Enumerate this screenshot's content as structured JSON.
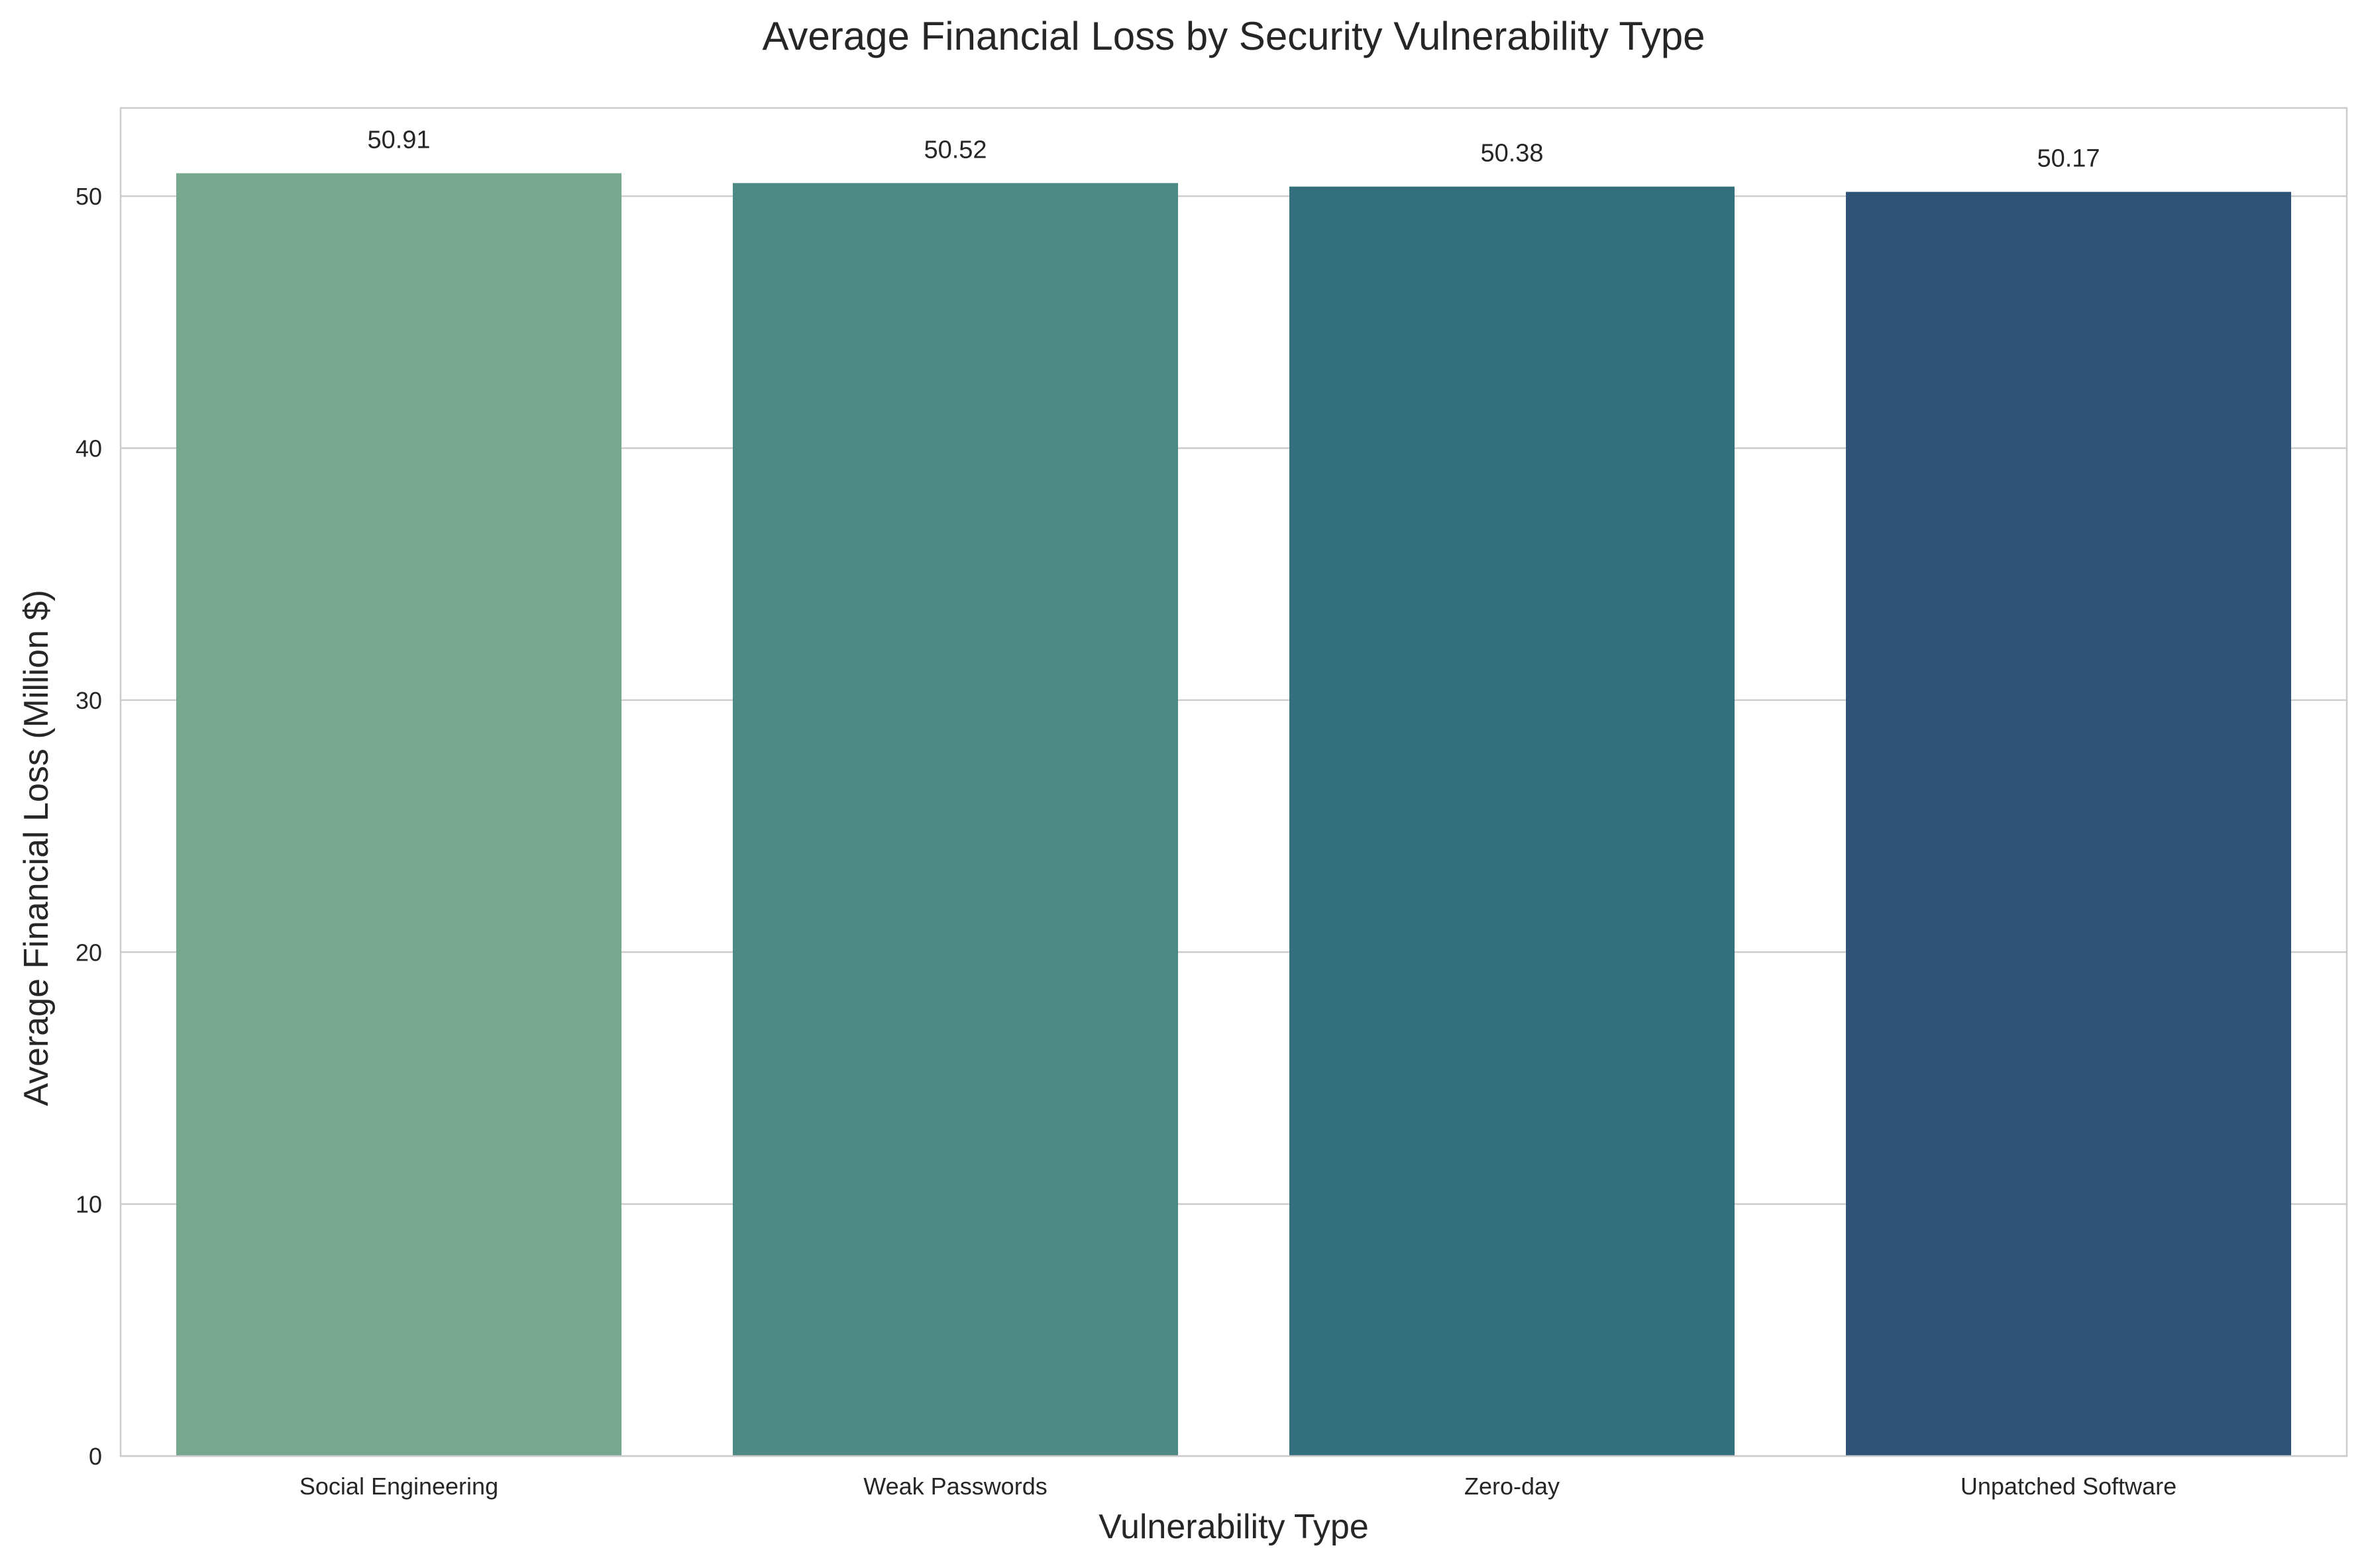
{
  "chart_data": {
    "type": "bar",
    "title": "Average Financial Loss by Security Vulnerability Type",
    "xlabel": "Vulnerability Type",
    "ylabel": "Average Financial Loss (Million $)",
    "categories": [
      "Social Engineering",
      "Weak Passwords",
      "Zero-day",
      "Unpatched Software"
    ],
    "values": [
      50.91,
      50.52,
      50.38,
      50.17
    ],
    "value_labels": [
      "50.91",
      "50.52",
      "50.38",
      "50.17"
    ],
    "yticks": [
      0,
      10,
      20,
      30,
      40,
      50
    ],
    "ylim": [
      0,
      53.5
    ],
    "grid": "horizontal",
    "legend": "none",
    "colors": [
      "#76a78f",
      "#4e8a84",
      "#346f7e",
      "#2e5377"
    ]
  }
}
